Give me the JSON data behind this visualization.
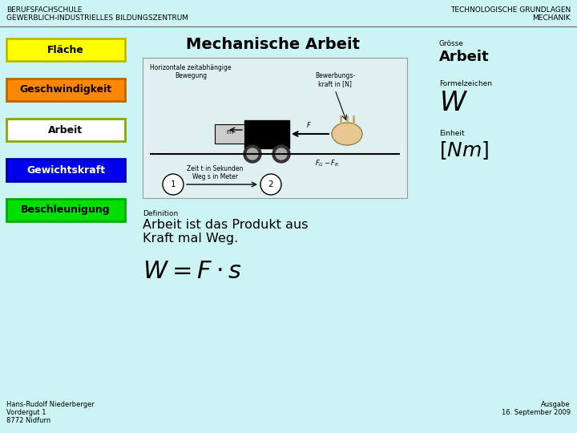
{
  "bg_color": "#cdf4f4",
  "title_left_line1": "BERUFSFACHSCHULE",
  "title_left_line2": "GEWERBLICH-INDUSTRIELLES BILDUNGSZENTRUM",
  "title_right_line1": "TECHNOLOGISCHE GRUNDLAGEN",
  "title_right_line2": "MECHANIK",
  "main_title": "Mechanische Arbeit",
  "sidebar_buttons": [
    {
      "label": "Fläche",
      "bg": "#ffff00",
      "fg": "#000000",
      "border": "#bbbb00"
    },
    {
      "label": "Geschwindigkeit",
      "bg": "#ff8800",
      "fg": "#000000",
      "border": "#bb6600"
    },
    {
      "label": "Arbeit",
      "bg": "#ffffff",
      "fg": "#000000",
      "border": "#88aa00"
    },
    {
      "label": "Gewichtskraft",
      "bg": "#0000ee",
      "fg": "#ffffff",
      "border": "#0000aa"
    },
    {
      "label": "Beschleunigung",
      "bg": "#00dd00",
      "fg": "#000000",
      "border": "#00aa00"
    }
  ],
  "right_panel_groesse_label": "Grösse",
  "right_panel_groesse_value": "Arbeit",
  "right_panel_formelzeichen_label": "Formelzeichen",
  "right_panel_einheit_label": "Einheit",
  "definition_label": "Definition",
  "definition_text": "Arbeit ist das Produkt aus\nKraft mal Weg.",
  "footer_left_line1": "Hans-Rudolf Niederberger",
  "footer_left_line2": "Vordergut 1",
  "footer_left_line3": "8772 Nidfurn",
  "footer_right_line1": "Ausgabe",
  "footer_right_line2": "16. September 2009"
}
